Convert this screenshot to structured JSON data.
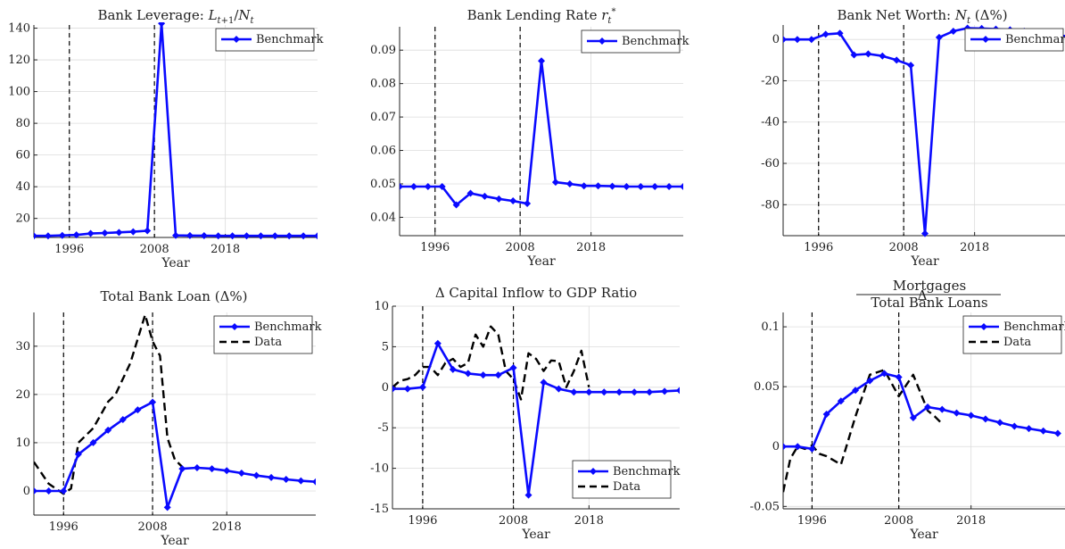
{
  "colors": {
    "benchmark": "#0a0aff",
    "data": "#000000",
    "axis": "#222222",
    "grid": "#dcdcdc"
  },
  "x_axis_label": "Year",
  "chart_data": [
    {
      "type": "line",
      "title": "Bank Leverage: L_{t+1}/N_t",
      "xlabel": "Year",
      "ylabel": "",
      "xlim": [
        1991,
        2031
      ],
      "ylim": [
        8,
        142
      ],
      "xticks": [
        1996,
        2008,
        2018
      ],
      "yticks": [
        20,
        40,
        60,
        80,
        100,
        120,
        140
      ],
      "ytick_labels": [
        "20",
        "40",
        "60",
        "80",
        "100",
        "120",
        "140"
      ],
      "vlines": [
        1996,
        2008
      ],
      "legend": "top-right",
      "series": [
        {
          "name": "Benchmark",
          "style": "benchmark",
          "x": [
            1991,
            1993,
            1995,
            1997,
            1999,
            2001,
            2003,
            2005,
            2007,
            2009,
            2011,
            2013,
            2015,
            2017,
            2019,
            2021,
            2023,
            2025,
            2027,
            2029,
            2031
          ],
          "y": [
            9,
            9,
            9.3,
            9.6,
            10.5,
            10.8,
            11.2,
            11.6,
            12.2,
            143,
            9.3,
            9.2,
            9.1,
            9.0,
            9.0,
            9.0,
            9.0,
            9.0,
            9.0,
            9.0,
            9.0
          ]
        }
      ]
    },
    {
      "type": "line",
      "title": "Bank Lending Rate r_t^*",
      "xlabel": "Year",
      "ylabel": "",
      "xlim": [
        1991,
        2031
      ],
      "ylim": [
        0.0345,
        0.097
      ],
      "xticks": [
        1996,
        2008,
        2018
      ],
      "yticks": [
        0.04,
        0.05,
        0.06,
        0.07,
        0.08,
        0.09
      ],
      "ytick_labels": [
        "0.04",
        "0.05",
        "0.06",
        "0.07",
        "0.08",
        "0.09"
      ],
      "vlines": [
        1996,
        2008
      ],
      "legend": "top-right",
      "series": [
        {
          "name": "Benchmark",
          "style": "benchmark",
          "x": [
            1991,
            1993,
            1995,
            1997,
            1999,
            2001,
            2003,
            2005,
            2007,
            2009,
            2011,
            2013,
            2015,
            2017,
            2019,
            2021,
            2023,
            2025,
            2027,
            2029,
            2031
          ],
          "y": [
            0.0492,
            0.0492,
            0.0492,
            0.0492,
            0.0437,
            0.0472,
            0.0463,
            0.0455,
            0.0449,
            0.0441,
            0.0868,
            0.0505,
            0.05,
            0.0494,
            0.0494,
            0.0493,
            0.0492,
            0.0492,
            0.0492,
            0.0492,
            0.0492
          ]
        }
      ]
    },
    {
      "type": "line",
      "title": "Bank Net Worth: N_t (Δ%)",
      "xlabel": "Year",
      "ylabel": "",
      "xlim": [
        1991,
        2031
      ],
      "ylim": [
        -95,
        7
      ],
      "xticks": [
        1996,
        2008,
        2018
      ],
      "yticks": [
        -80,
        -60,
        -40,
        -20,
        0
      ],
      "ytick_labels": [
        "-80",
        "-60",
        "-40",
        "-20",
        "0"
      ],
      "vlines": [
        1996,
        2008
      ],
      "legend": "top-right",
      "series": [
        {
          "name": "Benchmark",
          "style": "benchmark",
          "x": [
            1991,
            1993,
            1995,
            1997,
            1999,
            2001,
            2003,
            2005,
            2007,
            2009,
            2011,
            2013,
            2015,
            2017,
            2019,
            2021,
            2023,
            2025,
            2027,
            2029,
            2031
          ],
          "y": [
            0,
            0,
            0,
            2.5,
            3,
            -7.5,
            -7,
            -8,
            -10,
            -12.5,
            -94,
            1,
            4,
            5.5,
            5.3,
            5,
            4.7,
            4,
            3.2,
            2.5,
            1.5
          ]
        }
      ]
    },
    {
      "type": "line",
      "title": "Total Bank Loan (Δ%)",
      "xlabel": "Year",
      "ylabel": "",
      "xlim": [
        1992,
        2030
      ],
      "ylim": [
        -5,
        37
      ],
      "xticks": [
        1996,
        2008,
        2018
      ],
      "yticks": [
        0,
        10,
        20,
        30
      ],
      "ytick_labels": [
        "0",
        "10",
        "20",
        "30"
      ],
      "vlines": [
        1996,
        2008
      ],
      "legend": "top-right",
      "series": [
        {
          "name": "Benchmark",
          "style": "benchmark",
          "x": [
            1992,
            1994,
            1996,
            1998,
            2000,
            2002,
            2004,
            2006,
            2008,
            2010,
            2012,
            2014,
            2016,
            2018,
            2020,
            2022,
            2024,
            2026,
            2028,
            2030
          ],
          "y": [
            0,
            0,
            0,
            7.6,
            10,
            12.6,
            14.8,
            16.8,
            18.4,
            -3.4,
            4.6,
            4.8,
            4.6,
            4.2,
            3.7,
            3.2,
            2.8,
            2.4,
            2.1,
            1.9
          ]
        },
        {
          "name": "Data",
          "style": "data",
          "x": [
            1992,
            1994,
            1996,
            1997,
            1998,
            2000,
            2002,
            2003,
            2005,
            2007,
            2008,
            2009,
            2010,
            2011,
            2012
          ],
          "y": [
            6,
            1.5,
            -0.6,
            0.5,
            10,
            13,
            18.5,
            20,
            26.5,
            36.5,
            31,
            28,
            11,
            6.5,
            5
          ]
        }
      ]
    },
    {
      "type": "line",
      "title": "Δ Capital Inflow to GDP Ratio",
      "xlabel": "Year",
      "ylabel": "",
      "xlim": [
        1992,
        2030
      ],
      "ylim": [
        -15,
        10
      ],
      "xticks": [
        1996,
        2008,
        2018
      ],
      "yticks": [
        -15,
        -10,
        -5,
        0,
        5,
        10
      ],
      "ytick_labels": [
        "-15",
        "-10",
        "-5",
        "0",
        "5",
        "10"
      ],
      "vlines": [
        1996,
        2008
      ],
      "legend": "bottom-right",
      "series": [
        {
          "name": "Benchmark",
          "style": "benchmark",
          "x": [
            1992,
            1994,
            1996,
            1998,
            2000,
            2002,
            2004,
            2006,
            2008,
            2010,
            2012,
            2014,
            2016,
            2018,
            2020,
            2022,
            2024,
            2026,
            2028,
            2030
          ],
          "y": [
            -0.2,
            -0.2,
            0,
            5.4,
            2.2,
            1.7,
            1.5,
            1.5,
            2.4,
            -13.3,
            0.6,
            -0.2,
            -0.6,
            -0.6,
            -0.6,
            -0.6,
            -0.6,
            -0.6,
            -0.5,
            -0.4
          ]
        },
        {
          "name": "Data",
          "style": "data",
          "x": [
            1992,
            1993,
            1994,
            1995,
            1996,
            1997,
            1998,
            1999,
            2000,
            2001,
            2002,
            2003,
            2004,
            2005,
            2006,
            2007,
            2008,
            2009,
            2010,
            2011,
            2012,
            2013,
            2014,
            2015,
            2016,
            2017,
            2018
          ],
          "y": [
            0,
            0.8,
            1,
            1.5,
            2.5,
            2.5,
            1.5,
            3,
            3.5,
            2.5,
            3,
            6.5,
            5,
            7.5,
            6.5,
            2,
            1,
            -1.5,
            4.2,
            3.5,
            2,
            3.3,
            3.2,
            0,
            2,
            4.5,
            0
          ]
        }
      ]
    },
    {
      "type": "line",
      "title": "Δ Mortgages / Total Bank Loans",
      "xlabel": "Year",
      "ylabel": "",
      "xlim": [
        1992,
        2031
      ],
      "ylim": [
        -0.052,
        0.112
      ],
      "xticks": [
        1996,
        2008,
        2018
      ],
      "yticks": [
        -0.05,
        0,
        0.05,
        0.1
      ],
      "ytick_labels": [
        "-0.05",
        "0",
        "0.05",
        "0.1"
      ],
      "vlines": [
        1996,
        2008
      ],
      "legend": "top-right",
      "series": [
        {
          "name": "Benchmark",
          "style": "benchmark",
          "x": [
            1992,
            1994,
            1996,
            1998,
            2000,
            2002,
            2004,
            2006,
            2008,
            2010,
            2012,
            2014,
            2016,
            2018,
            2020,
            2022,
            2024,
            2026,
            2028,
            2030
          ],
          "y": [
            0,
            0,
            -0.002,
            0.027,
            0.038,
            0.047,
            0.055,
            0.061,
            0.058,
            0.024,
            0.033,
            0.031,
            0.028,
            0.026,
            0.023,
            0.02,
            0.017,
            0.015,
            0.013,
            0.011
          ]
        },
        {
          "name": "Data",
          "style": "data",
          "x": [
            1992,
            1993,
            1994,
            1995,
            1996,
            1997,
            1998,
            2000,
            2002,
            2004,
            2006,
            2008,
            2010,
            2012,
            2013,
            2014
          ],
          "y": [
            -0.038,
            -0.01,
            0,
            -0.002,
            0.001,
            -0.006,
            -0.008,
            -0.015,
            0.025,
            0.06,
            0.064,
            0.042,
            0.06,
            0.03,
            0.025,
            0.019
          ]
        }
      ]
    }
  ]
}
